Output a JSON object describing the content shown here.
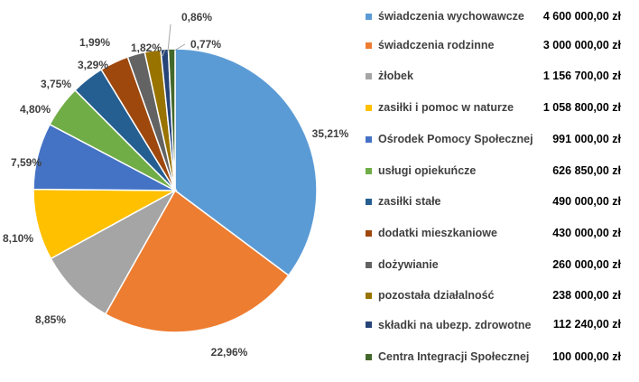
{
  "chart_data": {
    "type": "pie",
    "currency_suffix": "zł",
    "slices": [
      {
        "name": "świadczenia wychowawcze",
        "value": 4600000,
        "amount_label": "4 600 000,00 zł",
        "percent_label": "35,21%",
        "color": "#5B9BD5"
      },
      {
        "name": "świadczenia rodzinne",
        "value": 3000000,
        "amount_label": "3 000 000,00 zł",
        "percent_label": "22,96%",
        "color": "#ED7D31"
      },
      {
        "name": "żłobek",
        "value": 1156700,
        "amount_label": "1 156 700,00 zł",
        "percent_label": "8,85%",
        "color": "#A5A5A5"
      },
      {
        "name": "zasiłki i pomoc w naturze",
        "value": 1058800,
        "amount_label": "1 058 800,00 zł",
        "percent_label": "8,10%",
        "color": "#FFC000"
      },
      {
        "name": "Ośrodek Pomocy Społecznej",
        "value": 991000,
        "amount_label": "991 000,00 zł",
        "percent_label": "7,59%",
        "color": "#4472C4"
      },
      {
        "name": "usługi opiekuńcze",
        "value": 626850,
        "amount_label": "626 850,00 zł",
        "percent_label": "4,80%",
        "color": "#70AD47"
      },
      {
        "name": "zasiłki stałe",
        "value": 490000,
        "amount_label": "490 000,00 zł",
        "percent_label": "3,75%",
        "color": "#255E91"
      },
      {
        "name": "dodatki mieszkaniowe",
        "value": 430000,
        "amount_label": "430 000,00 zł",
        "percent_label": "3,29%",
        "color": "#9E480E"
      },
      {
        "name": "dożywianie",
        "value": 260000,
        "amount_label": "260 000,00 zł",
        "percent_label": "1,99%",
        "color": "#636363"
      },
      {
        "name": "pozostała działalność",
        "value": 238000,
        "amount_label": "238 000,00 zł",
        "percent_label": "1,82%",
        "color": "#997300"
      },
      {
        "name": "składki na ubezp. zdrowotne",
        "value": 112240,
        "amount_label": "112 240,00 zł",
        "percent_label": "0,86%",
        "color": "#264478"
      },
      {
        "name": "Centra Integracji Społecznej",
        "value": 100000,
        "amount_label": "100 000,00 zł",
        "percent_label": "0,77%",
        "color": "#43682B"
      }
    ],
    "legend_position": "right"
  }
}
